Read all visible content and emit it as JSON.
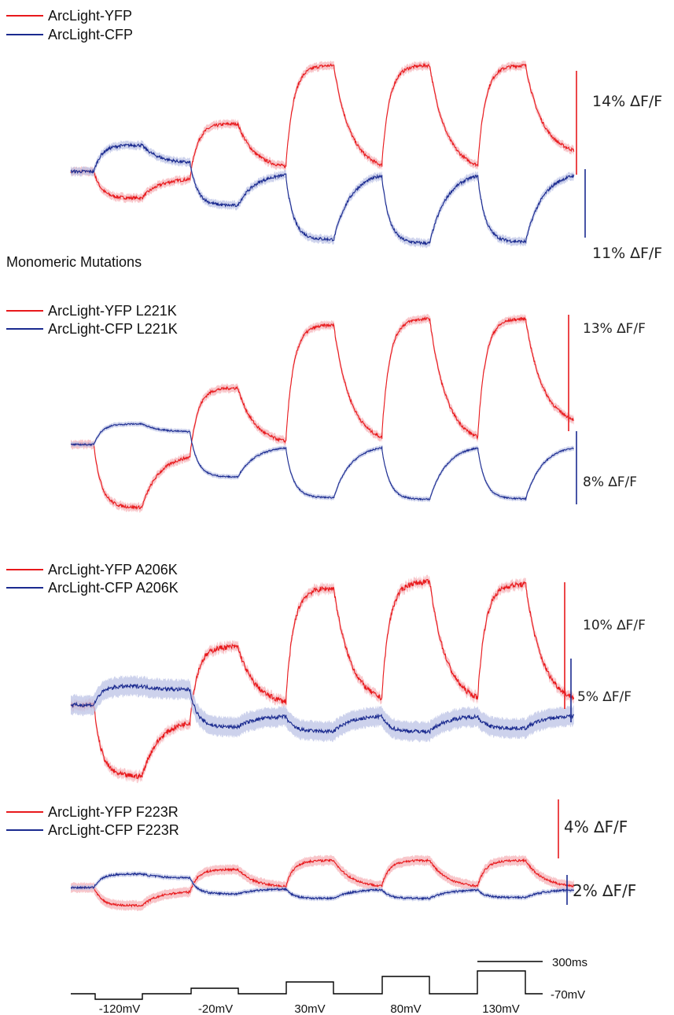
{
  "colors": {
    "yfp": "#e8191c",
    "cfp": "#1a2a8f",
    "yfp_band": "#f6b3b8",
    "cfp_band": "#bcc3e6",
    "protocol": "#000000"
  },
  "section_heading": "Monomeric Mutations",
  "chart_data": [
    {
      "type": "line",
      "legend": [
        "ArcLight-YFP",
        "ArcLight-CFP"
      ],
      "x_label": "",
      "y_label": "",
      "scale_bars": [
        "14% ∆F/F",
        "11% ∆F/F"
      ],
      "series": [
        {
          "name": "ArcLight-YFP",
          "baseline": 0,
          "plateaus": [
            -0.25,
            0.45,
            1.0,
            1.0,
            1.0
          ],
          "relax": [
            0.25,
            0.05,
            0.0,
            0.0,
            0.15
          ],
          "noise": 0.015
        },
        {
          "name": "ArcLight-CFP",
          "baseline": 0,
          "plateaus": [
            0.35,
            -0.45,
            -0.9,
            -0.95,
            -0.93
          ],
          "relax": [
            0.3,
            0.05,
            0.0,
            0.0,
            0.0
          ],
          "noise": 0.02
        }
      ]
    },
    {
      "type": "line",
      "legend": [
        "ArcLight-YFP L221K",
        "ArcLight-CFP L221K"
      ],
      "scale_bars": [
        "13% ∆F/F",
        "8% ∆F/F"
      ],
      "series": [
        {
          "name": "ArcLight-YFP L221K",
          "baseline": 0,
          "plateaus": [
            -0.5,
            0.45,
            0.95,
            1.0,
            1.0
          ],
          "relax": [
            0.15,
            0.0,
            0.0,
            0.0,
            0.15
          ],
          "noise": 0.012
        },
        {
          "name": "ArcLight-CFP L221K",
          "baseline": 0,
          "plateaus": [
            0.35,
            -0.55,
            -0.9,
            -0.93,
            -0.92
          ],
          "relax": [
            0.6,
            0.05,
            0.0,
            0.0,
            0.0
          ],
          "noise": 0.012
        }
      ]
    },
    {
      "type": "line",
      "legend": [
        "ArcLight-YFP A206K",
        "ArcLight-CFP A206K"
      ],
      "scale_bars": [
        "10% ∆F/F",
        "5% ∆F/F"
      ],
      "series": [
        {
          "name": "ArcLight-YFP A206K",
          "baseline": 0,
          "plateaus": [
            -0.55,
            0.45,
            0.9,
            0.95,
            0.93
          ],
          "relax": [
            0.2,
            0.0,
            0.0,
            0.0,
            0.0
          ],
          "noise": 0.02
        },
        {
          "name": "ArcLight-CFP A206K",
          "baseline": 0,
          "plateaus": [
            0.3,
            -0.35,
            -0.42,
            -0.42,
            -0.37
          ],
          "relax": [
            0.8,
            0.5,
            0.4,
            0.4,
            0.45
          ],
          "noise": 0.03
        }
      ]
    },
    {
      "type": "line",
      "legend": [
        "ArcLight-YFP F223R",
        "ArcLight-CFP F223R"
      ],
      "scale_bars": [
        "4% ∆F/F",
        "2% ∆F/F"
      ],
      "series": [
        {
          "name": "ArcLight-YFP F223R",
          "baseline": 0,
          "plateaus": [
            -0.2,
            0.2,
            0.3,
            0.3,
            0.3
          ],
          "relax": [
            0.2,
            0.0,
            0.0,
            0.0,
            0.0
          ],
          "noise": 0.012
        },
        {
          "name": "ArcLight-CFP F223R",
          "baseline": 0,
          "plateaus": [
            0.15,
            -0.07,
            -0.12,
            -0.12,
            -0.11
          ],
          "relax": [
            0.7,
            0.2,
            0.15,
            0.2,
            0.2
          ],
          "noise": 0.01
        }
      ]
    }
  ],
  "protocol": {
    "steps": [
      "-120mV",
      "-20mV",
      "30mV",
      "80mV",
      "130mV"
    ],
    "holding": "-70mV",
    "time_scale": "300ms"
  }
}
